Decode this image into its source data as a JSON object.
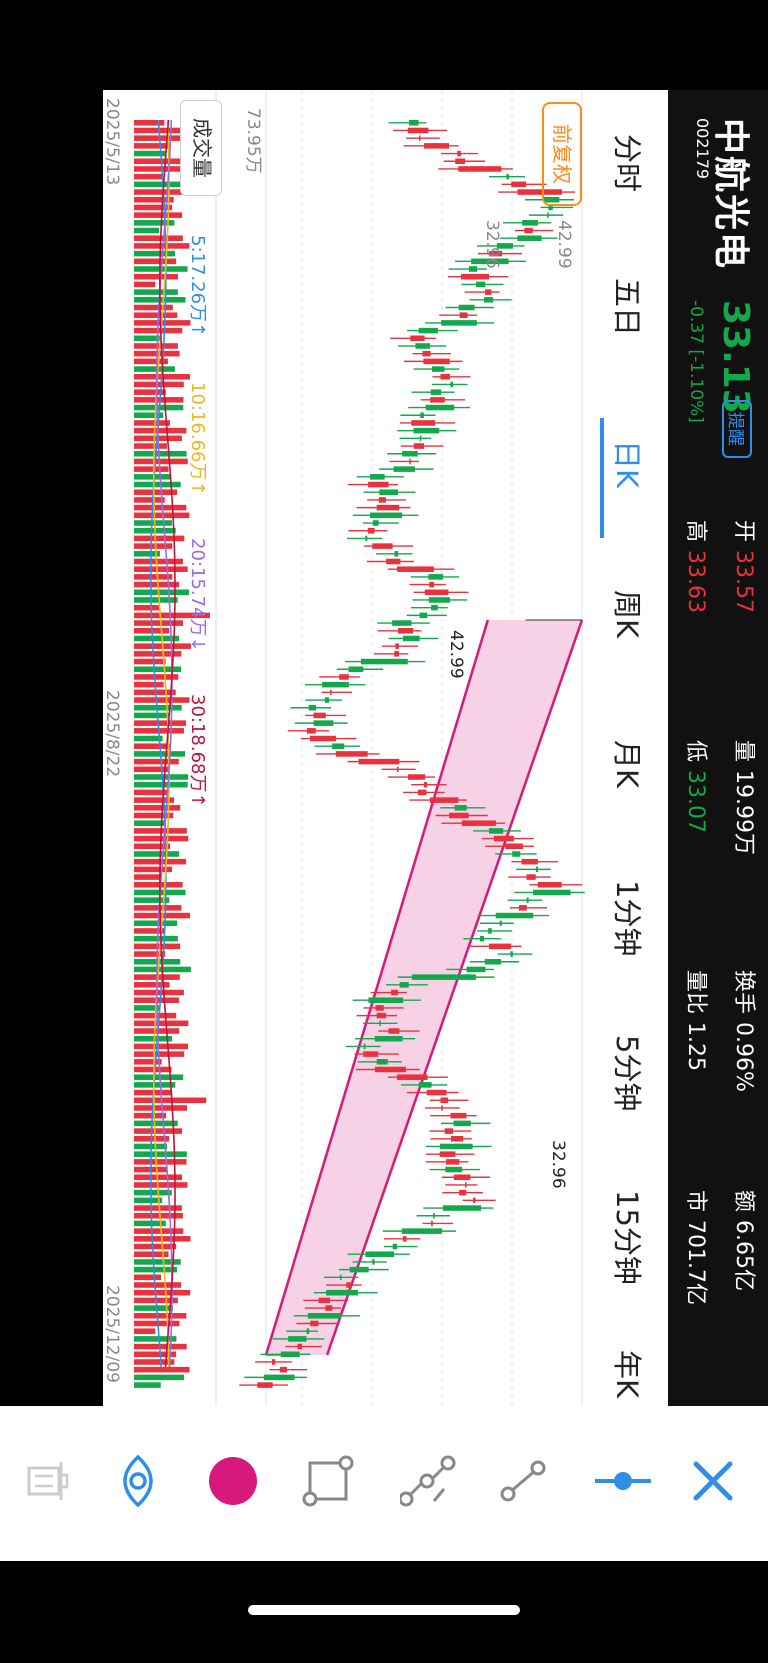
{
  "header": {
    "name": "中航光电",
    "code": "002179",
    "price": "33.13",
    "remind_label": "提醒",
    "change": "-0.37 [-1.10%]",
    "stats": [
      {
        "label": "开",
        "value": "33.57",
        "color": "red"
      },
      {
        "label": "高",
        "value": "33.63",
        "color": "red"
      },
      {
        "label": "量",
        "value": "19.99万",
        "color": "white"
      },
      {
        "label": "低",
        "value": "33.07",
        "color": "green"
      },
      {
        "label": "换手",
        "value": "0.96%",
        "color": "white"
      },
      {
        "label": "量比",
        "value": "1.25",
        "color": "white"
      },
      {
        "label": "额",
        "value": "6.65亿",
        "color": "white"
      },
      {
        "label": "市",
        "value": "701.7亿",
        "color": "white"
      }
    ]
  },
  "tabs": [
    "分时",
    "五日",
    "日K",
    "周K",
    "月K",
    "1分钟",
    "5分钟",
    "15分钟",
    "年K"
  ],
  "active_tab": "日K",
  "chart": {
    "adjust_label": "前复权",
    "axis_top": "42.99",
    "axis_bottom": "32.96",
    "marker_high": "42.99",
    "marker_low": "32.96",
    "volume_axis": "73.95万",
    "volume_button": "成交量",
    "ma": [
      {
        "text": "5:17.26万↑",
        "color": "#2f8ee8"
      },
      {
        "text": "10:16.66万↑",
        "color": "#f2b51c"
      },
      {
        "text": "20:15.74万↓",
        "color": "#9b6be0"
      },
      {
        "text": "30:18.68万↑",
        "color": "#c0143c"
      }
    ],
    "dates": [
      "2025/5/13",
      "2025/8/22",
      "2025/12/09"
    ]
  },
  "chart_data": {
    "type": "candlestick",
    "x_start": "2025/5/13",
    "x_end": "2025/12/09",
    "ylim": [
      32.96,
      42.99
    ],
    "close_path": [
      37.5,
      38.6,
      40.2,
      42.2,
      41.6,
      40.8,
      39.4,
      40.1,
      39.2,
      37.6,
      38.5,
      38.7,
      38.1,
      37.9,
      37.6,
      36.4,
      37.0,
      36.1,
      36.9,
      38.3,
      38.5,
      37.3,
      37.4,
      35.5,
      34.8,
      34.5,
      34.9,
      37.4,
      38.2,
      39.4,
      40.7,
      41.3,
      42.0,
      40.9,
      39.8,
      40.9,
      37.4,
      36.4,
      37.0,
      36.0,
      37.8,
      38.7,
      39.1,
      38.8,
      39.0,
      39.6,
      38.2,
      37.1,
      35.8,
      35.2,
      34.7,
      34.0,
      33.4,
      33.1
    ],
    "channel": {
      "upper_start": 34.9,
      "upper_end": 42.99,
      "lower_start": 32.96,
      "lower_end": 40.0
    }
  },
  "toolbar": [
    "close-icon",
    "line-handle-icon",
    "segment-icon",
    "polyline-icon",
    "rectangle-icon",
    "color-swatch-icon",
    "eye-icon",
    "trash-icon"
  ],
  "colors": {
    "up": "#e8323d",
    "down": "#12a84b",
    "accent": "#2f8ee8",
    "channel": "#d6197a",
    "highlight": "#ff8a1c"
  }
}
